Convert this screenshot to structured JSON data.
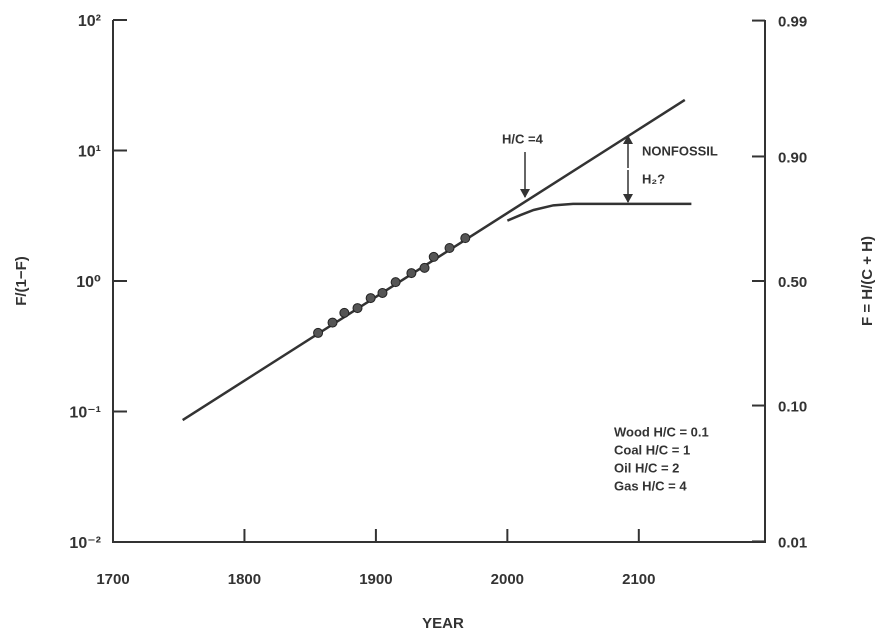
{
  "chart_data": {
    "type": "line",
    "xlabel": "YEAR",
    "ylabel": "F/(1−F)",
    "y2label": "F = H/(C + H)",
    "xlim": [
      1700,
      2196
    ],
    "xticks": [
      1700,
      1800,
      1900,
      2000,
      2100
    ],
    "ylim": [
      0.01,
      100
    ],
    "log_y": true,
    "yticks": [
      {
        "value": 100,
        "label": "10²"
      },
      {
        "value": 10,
        "label": "10¹"
      },
      {
        "value": 1,
        "label": "10⁰"
      },
      {
        "value": 0.1,
        "label": "10⁻¹"
      },
      {
        "value": 0.01,
        "label": "10⁻²"
      }
    ],
    "y2scale": "F/(1-F) log",
    "y2ticks": [
      0.99,
      {
        "value": 0.9,
        "label": "0.90"
      },
      {
        "value": 0.5,
        "label": "0.50"
      },
      {
        "value": 0.1,
        "label": "0.10"
      },
      0.01
    ],
    "color": "#333333",
    "series": [
      {
        "type": "line",
        "color": "#333333",
        "x": [
          1753,
          2135
        ],
        "values": [
          0.086,
          24.4
        ]
      },
      {
        "type": "line",
        "color": "#333333",
        "x": [
          2000,
          2010,
          2020,
          2035,
          2050,
          2140
        ],
        "values": [
          2.9,
          3.2,
          3.5,
          3.8,
          3.9,
          3.9
        ]
      },
      {
        "type": "scatter",
        "color": "#555555",
        "x": [
          1856,
          1867,
          1876,
          1886,
          1896,
          1905,
          1915,
          1927,
          1937,
          1944,
          1956,
          1968
        ],
        "values": [
          0.4,
          0.48,
          0.57,
          0.62,
          0.74,
          0.81,
          0.98,
          1.15,
          1.26,
          1.53,
          1.79,
          2.13
        ]
      }
    ],
    "annotations": [
      "H/C =4",
      "NONFOSSIL",
      "H₂?"
    ],
    "notes": [
      "Wood H/C = 0.1",
      "Coal H/C = 1",
      "Oil H/C = 2",
      "Gas H/C = 4"
    ]
  }
}
